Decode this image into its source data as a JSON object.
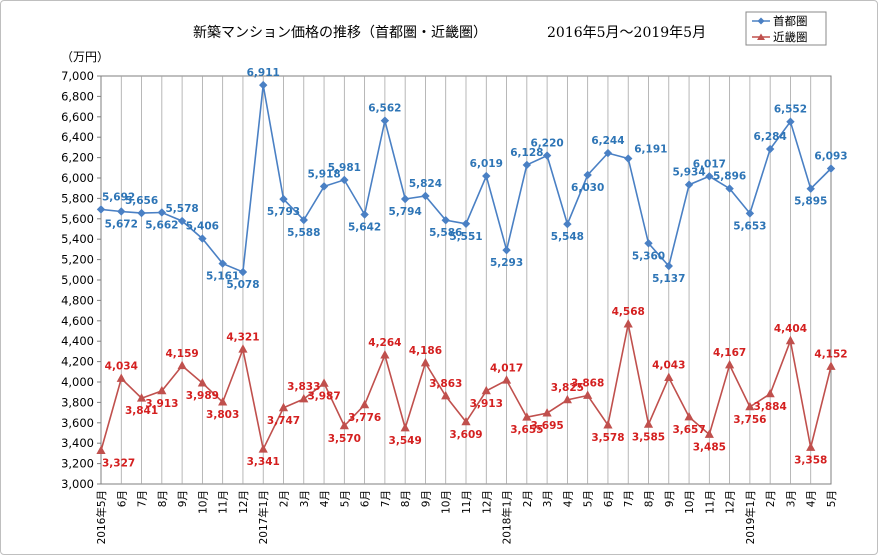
{
  "chart_data": {
    "type": "line",
    "title": "新築マンション価格の推移（首都圏・近畿圏）",
    "period": "2016年5月～2019年5月",
    "ylabel": "（万円）",
    "ylim": [
      3000,
      7000
    ],
    "ystep": 200,
    "categories": [
      "2016年5月",
      "6月",
      "7月",
      "8月",
      "9月",
      "10月",
      "11月",
      "12月",
      "2017年1月",
      "2月",
      "3月",
      "4月",
      "5月",
      "6月",
      "7月",
      "8月",
      "9月",
      "10月",
      "11月",
      "12月",
      "2018年1月",
      "2月",
      "3月",
      "4月",
      "5月",
      "6月",
      "7月",
      "8月",
      "9月",
      "10月",
      "11月",
      "12月",
      "2019年1月",
      "2月",
      "3月",
      "4月",
      "5月"
    ],
    "series": [
      {
        "name": "首都圏",
        "color": "#4a80c4",
        "label_color": "#2e75b6",
        "marker": "diamond",
        "values": [
          5692,
          5672,
          5656,
          5662,
          5578,
          5406,
          5161,
          5078,
          6911,
          5793,
          5588,
          5918,
          5981,
          5642,
          6562,
          5794,
          5824,
          5586,
          5551,
          6019,
          5293,
          6128,
          6220,
          5548,
          6030,
          6244,
          6191,
          5360,
          5137,
          5934,
          6017,
          5896,
          5653,
          6284,
          6552,
          5895,
          6093
        ],
        "labels": [
          "5,692",
          "5,672",
          "5,656",
          "5,662",
          "5,578",
          "5,406",
          "5,161",
          "5,078",
          "6,911",
          "5,793",
          "5,588",
          "5,918",
          "5,981",
          "5,642",
          "6,562",
          "5,794",
          "5,824",
          "5,586",
          "5,551",
          "6,019",
          "5,293",
          "6,128",
          "6,220",
          "5,548",
          "6,030",
          "6,244",
          "6,191",
          "5,360",
          "5,137",
          "5,934",
          "6,017",
          "5,896",
          "5,653",
          "6,284",
          "6,552",
          "5,895",
          "6,093"
        ],
        "label_pos": [
          "above",
          "below",
          "above",
          "below",
          "above",
          "above",
          "below",
          "below",
          "above",
          "below",
          "below",
          "above",
          "above",
          "below",
          "above",
          "below",
          "above",
          "below",
          "below",
          "above",
          "below",
          "above",
          "above",
          "below",
          "below",
          "above",
          "right",
          "below",
          "below",
          "above",
          "above",
          "above",
          "below",
          "above",
          "above",
          "below",
          "above"
        ]
      },
      {
        "name": "近畿圏",
        "color": "#c0504d",
        "label_color": "#d42020",
        "marker": "triangle",
        "values": [
          3327,
          4034,
          3841,
          3913,
          4159,
          3989,
          3803,
          4321,
          3341,
          3747,
          3833,
          3987,
          3570,
          3776,
          4264,
          3549,
          4186,
          3863,
          3609,
          3913,
          4017,
          3655,
          3695,
          3825,
          3868,
          3578,
          4568,
          3585,
          4043,
          3657,
          3485,
          4167,
          3756,
          3884,
          4404,
          3358,
          4152
        ],
        "labels": [
          "3,327",
          "4,034",
          "3,841",
          "3,913",
          "4,159",
          "3,989",
          "3,803",
          "4,321",
          "3,341",
          "3,747",
          "3,833",
          "3,987",
          "3,570",
          "3,776",
          "4,264",
          "3,549",
          "4,186",
          "3,863",
          "3,609",
          "3,913",
          "4,017",
          "3,655",
          "3,695",
          "3,825",
          "3,868",
          "3,578",
          "4,568",
          "3,585",
          "4,043",
          "3,657",
          "3,485",
          "4,167",
          "3,756",
          "3,884",
          "4,404",
          "3,358",
          "4,152"
        ],
        "label_pos": [
          "below",
          "above",
          "below",
          "below",
          "above",
          "below",
          "below",
          "above",
          "below",
          "below",
          "above",
          "below",
          "below",
          "below",
          "above",
          "below",
          "above",
          "above",
          "below",
          "below",
          "above",
          "below",
          "below",
          "above",
          "above",
          "below",
          "above",
          "below",
          "above",
          "below",
          "below",
          "above",
          "below",
          "below",
          "above",
          "below",
          "above"
        ]
      }
    ],
    "legend": [
      "首都圏",
      "近畿圏"
    ],
    "legend_position": "top-right",
    "grid": "vertical"
  }
}
